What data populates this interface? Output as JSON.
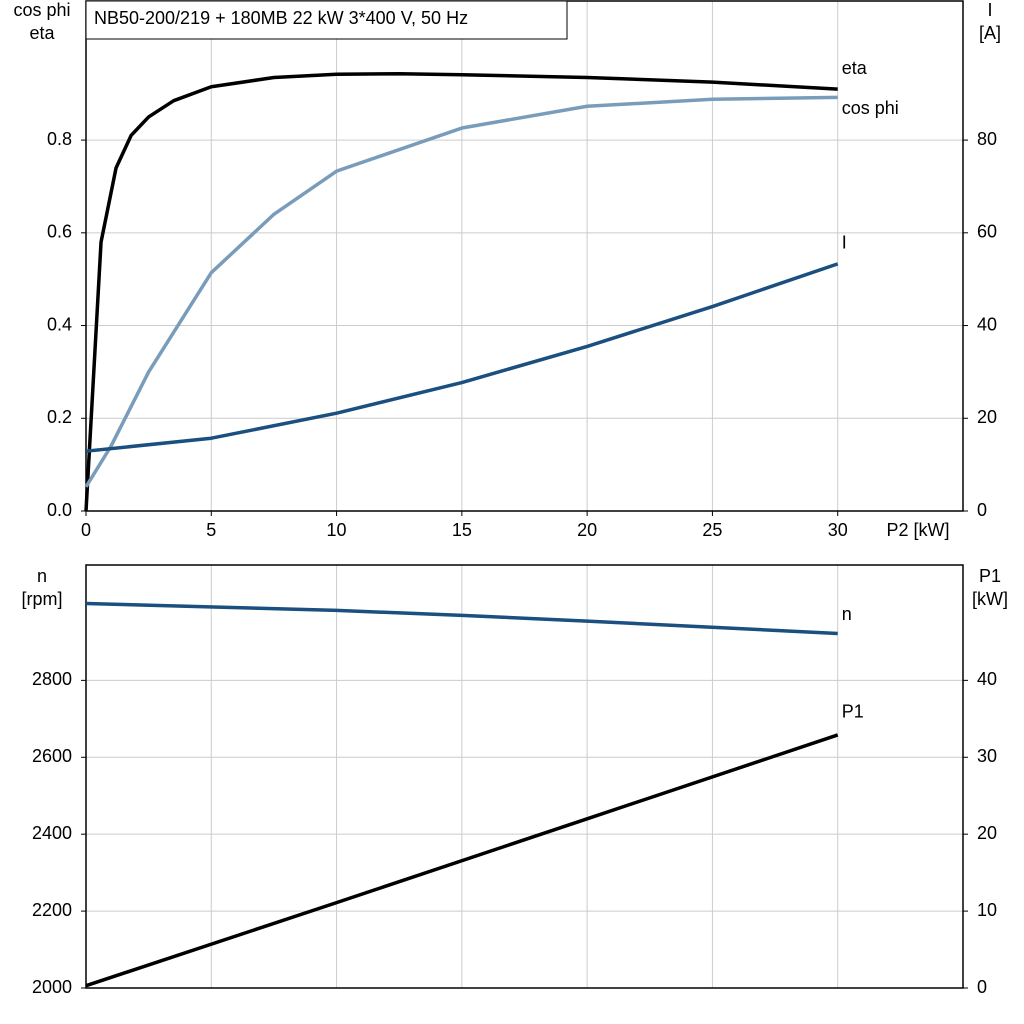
{
  "chart_data": [
    {
      "type": "line",
      "title": "NB50-200/219 + 180MB   22 kW   3*400 V, 50 Hz",
      "xlabel": "P2 [kW]",
      "ylabel": [
        "cos phi",
        "eta"
      ],
      "y2label": [
        "I",
        "[A]"
      ],
      "xlim": [
        0,
        35
      ],
      "xticks": [
        0,
        5,
        10,
        15,
        20,
        25,
        30
      ],
      "ylim": [
        0,
        1.1
      ],
      "yticks": [
        {
          "value": 0,
          "label": "0.0"
        },
        0.2,
        0.4,
        0.6,
        0.8
      ],
      "y2lim": [
        0,
        110
      ],
      "y2ticks": [
        0,
        20,
        40,
        60,
        80
      ],
      "grid": true,
      "series": [
        {
          "name": "eta",
          "color": "#000000",
          "x": [
            0,
            0.6,
            1.2,
            1.8,
            2.5,
            3.5,
            5,
            7.5,
            10,
            12.5,
            15,
            20,
            25,
            30
          ],
          "values": [
            0,
            0.58,
            0.74,
            0.81,
            0.85,
            0.885,
            0.915,
            0.935,
            0.942,
            0.943,
            0.941,
            0.935,
            0.925,
            0.91
          ]
        },
        {
          "name": "cos phi",
          "color": "#7a9cbb",
          "x": [
            0,
            1,
            2.5,
            5,
            7.5,
            10,
            15,
            20,
            25,
            30
          ],
          "values": [
            0.052,
            0.14,
            0.3,
            0.514,
            0.64,
            0.733,
            0.826,
            0.873,
            0.888,
            0.892
          ]
        },
        {
          "name": "I",
          "color": "#1a4f80",
          "axis": "y2",
          "x": [
            0,
            5,
            10,
            15,
            20,
            25,
            30
          ],
          "values": [
            12.9,
            15.7,
            21.1,
            27.7,
            35.5,
            44.1,
            53.3
          ]
        }
      ]
    },
    {
      "type": "line",
      "ylabel": [
        "n",
        "[rpm]"
      ],
      "y2label": [
        "P1",
        "[kW]"
      ],
      "xlim": [
        0,
        35
      ],
      "ylim": [
        2000,
        3100
      ],
      "yticks": [
        2000,
        2200,
        2400,
        2600,
        2800
      ],
      "y2lim": [
        0,
        55
      ],
      "y2ticks": [
        0,
        10,
        20,
        30,
        40
      ],
      "grid": true,
      "series": [
        {
          "name": "n",
          "color": "#1a4f80",
          "x": [
            0,
            10,
            15,
            20,
            30
          ],
          "values": [
            3000,
            2982,
            2969,
            2954,
            2922
          ]
        },
        {
          "name": "P1",
          "color": "#000000",
          "axis": "y2",
          "x": [
            0,
            10,
            20,
            30
          ],
          "values": [
            0.3,
            11.1,
            22.0,
            32.9
          ]
        }
      ]
    }
  ]
}
